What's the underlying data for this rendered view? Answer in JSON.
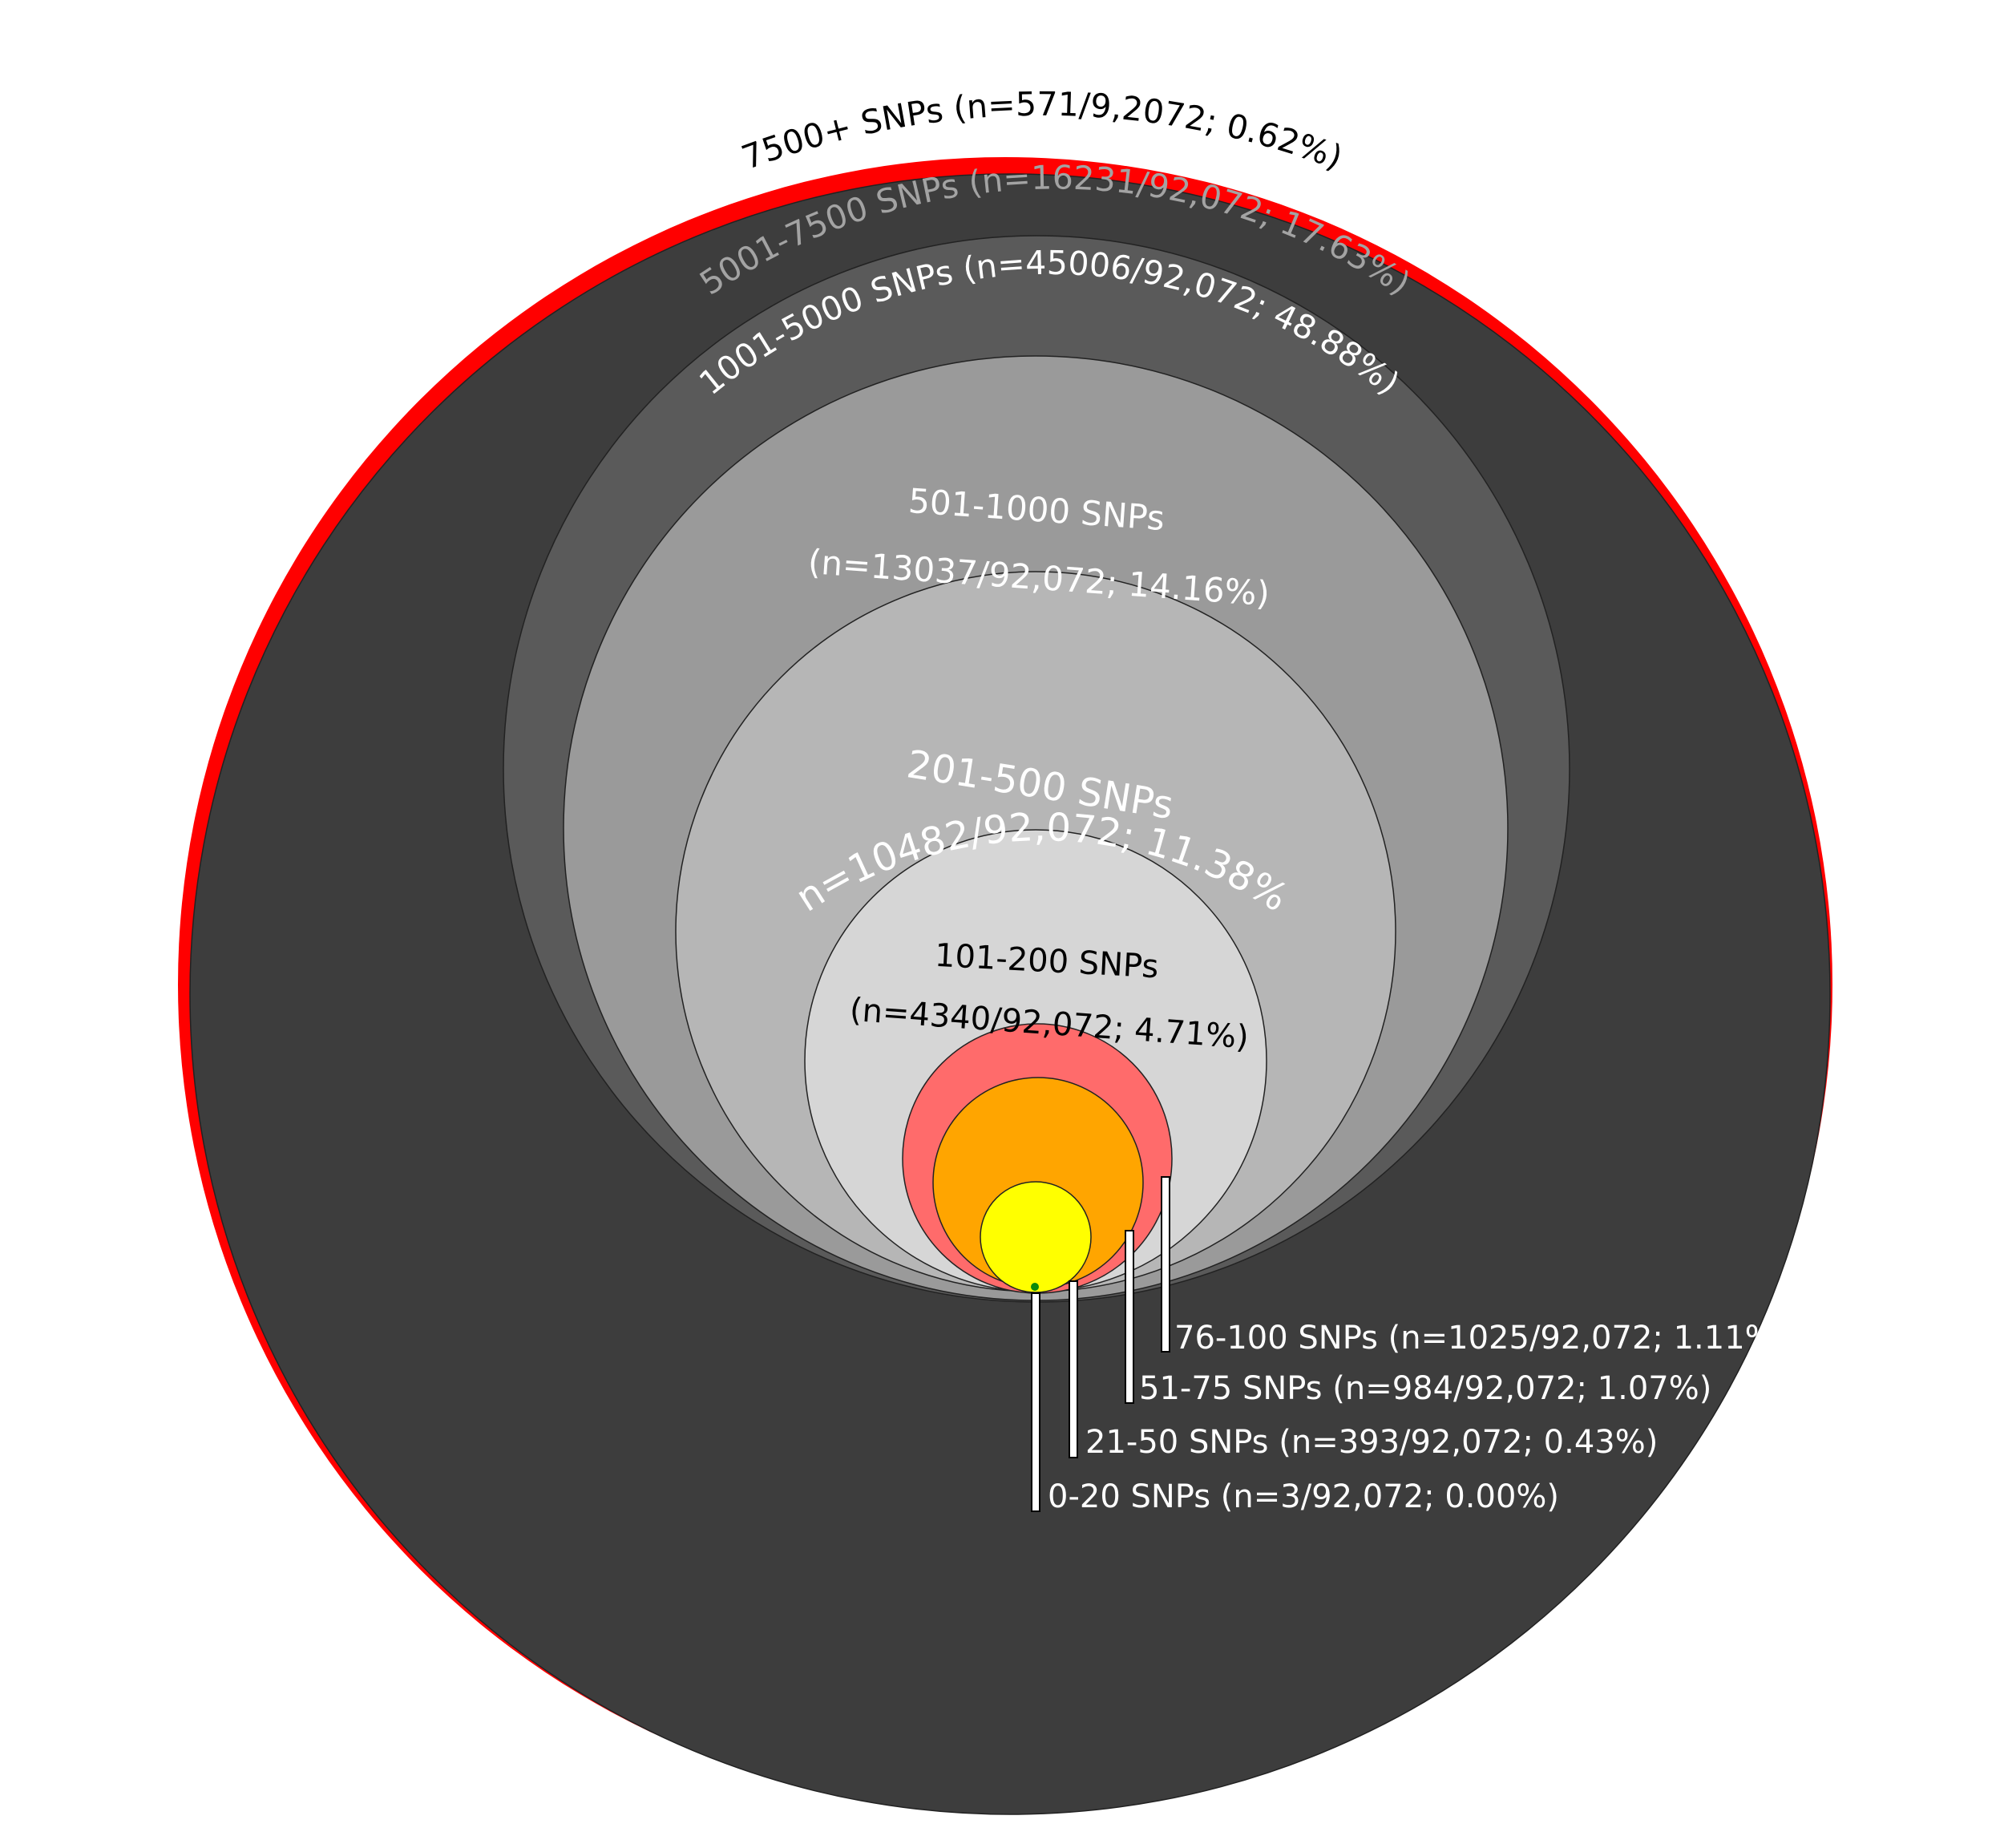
{
  "chart_data": {
    "type": "nested-circles",
    "total": "92,072",
    "levels": [
      {
        "id": "l7500plus",
        "range": "7500+ SNPs",
        "n": 571,
        "pct": 0.62,
        "fill": "#ff0000",
        "label": "7500+ SNPs (n=571/9,2072; 0.62%)"
      },
      {
        "id": "l5001",
        "range": "5001-7500 SNPs",
        "n": 16231,
        "pct": 17.63,
        "fill": "#3d3d3d",
        "label": "5001-7500 SNPs (n=16231/92,072; 17.63%)"
      },
      {
        "id": "l1001",
        "range": "1001-5000 SNPs",
        "n": 45006,
        "pct": 48.88,
        "fill": "#5a5a5a",
        "label": "1001-5000 SNPs (n=45006/92,072; 48.88%)"
      },
      {
        "id": "l501",
        "range": "501-1000 SNPs",
        "n": 13037,
        "pct": 14.16,
        "fill": "#9a9a9a",
        "label_line1": "501-1000 SNPs",
        "label_line2": "(n=13037/92,072; 14.16%)"
      },
      {
        "id": "l201",
        "range": "201-500 SNPs",
        "n": 10482,
        "pct": 11.38,
        "fill": "#b6b6b6",
        "label_line1": "201-500 SNPs",
        "label_line2": "(n=10482/92,072; 11.38%)"
      },
      {
        "id": "l101",
        "range": "101-200 SNPs",
        "n": 4340,
        "pct": 4.71,
        "fill": "#d6d6d6",
        "label_line1": "101-200 SNPs",
        "label_line2": "(n=4340/92,072; 4.71%)"
      },
      {
        "id": "l76",
        "range": "76-100 SNPs",
        "n": 1025,
        "pct": 1.11,
        "fill": "#ff6b6b",
        "label": "76-100 SNPs (n=1025/92,072; 1.11%)"
      },
      {
        "id": "l51",
        "range": "51-75 SNPs",
        "n": 984,
        "pct": 1.07,
        "fill": "#ffa500",
        "label": "51-75 SNPs (n=984/92,072; 1.07%)"
      },
      {
        "id": "l21",
        "range": "21-50 SNPs",
        "n": 393,
        "pct": 0.43,
        "fill": "#ffff00",
        "label": "21-50 SNPs (n=393/92,072; 0.43%)"
      },
      {
        "id": "l0",
        "range": "0-20 SNPs",
        "n": 3,
        "pct": 0.0,
        "fill": "#0a8a0a",
        "label": "0-20 SNPs (n=3/92,072; 0.00%)"
      }
    ]
  }
}
